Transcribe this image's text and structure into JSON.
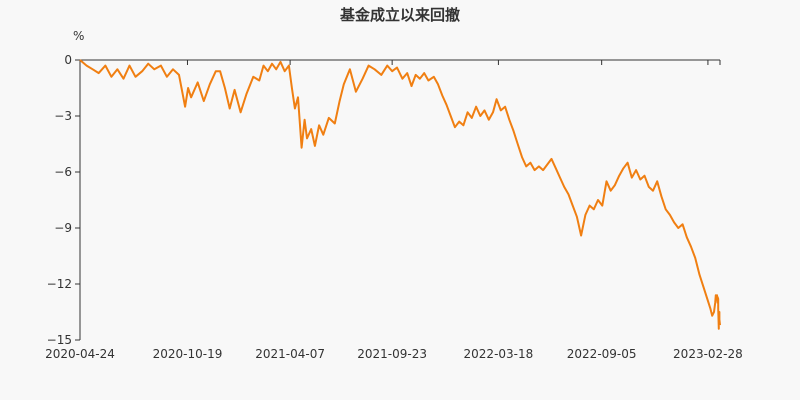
{
  "chart_data": {
    "type": "line",
    "title": "基金成立以来回撤",
    "unit_label": "%",
    "ylim": [
      -15,
      0
    ],
    "y_ticks": [
      0,
      -3,
      -6,
      -9,
      -12,
      -15
    ],
    "y_tick_labels": [
      "0",
      "−3",
      "−6",
      "−9",
      "−12",
      "−15"
    ],
    "x_ticks": [
      "2020-04-24",
      "2020-10-19",
      "2021-04-07",
      "2021-09-23",
      "2022-03-18",
      "2022-09-05",
      "2023-02-28"
    ],
    "x_range": [
      "2020-04-24",
      "2023-03-20"
    ],
    "grid": false,
    "line_color": "#f07f12",
    "series": [
      {
        "name": "",
        "points": [
          [
            "2020-04-24",
            0.0
          ],
          [
            "2020-05-05",
            -0.3
          ],
          [
            "2020-05-15",
            -0.5
          ],
          [
            "2020-05-25",
            -0.7
          ],
          [
            "2020-06-05",
            -0.3
          ],
          [
            "2020-06-15",
            -0.9
          ],
          [
            "2020-06-25",
            -0.5
          ],
          [
            "2020-07-05",
            -1.0
          ],
          [
            "2020-07-15",
            -0.3
          ],
          [
            "2020-07-25",
            -0.9
          ],
          [
            "2020-08-05",
            -0.6
          ],
          [
            "2020-08-15",
            -0.2
          ],
          [
            "2020-08-25",
            -0.5
          ],
          [
            "2020-09-05",
            -0.3
          ],
          [
            "2020-09-15",
            -0.9
          ],
          [
            "2020-09-25",
            -0.5
          ],
          [
            "2020-10-05",
            -0.8
          ],
          [
            "2020-10-15",
            -2.5
          ],
          [
            "2020-10-20",
            -1.5
          ],
          [
            "2020-10-25",
            -2.0
          ],
          [
            "2020-11-05",
            -1.2
          ],
          [
            "2020-11-15",
            -2.2
          ],
          [
            "2020-11-25",
            -1.3
          ],
          [
            "2020-12-05",
            -0.6
          ],
          [
            "2020-12-12",
            -0.6
          ],
          [
            "2020-12-20",
            -1.5
          ],
          [
            "2020-12-28",
            -2.6
          ],
          [
            "2021-01-05",
            -1.6
          ],
          [
            "2021-01-15",
            -2.8
          ],
          [
            "2021-01-25",
            -1.8
          ],
          [
            "2021-02-05",
            -0.9
          ],
          [
            "2021-02-15",
            -1.1
          ],
          [
            "2021-02-22",
            -0.3
          ],
          [
            "2021-03-01",
            -0.6
          ],
          [
            "2021-03-08",
            -0.2
          ],
          [
            "2021-03-15",
            -0.5
          ],
          [
            "2021-03-22",
            -0.1
          ],
          [
            "2021-03-29",
            -0.6
          ],
          [
            "2021-04-05",
            -0.3
          ],
          [
            "2021-04-10",
            -1.5
          ],
          [
            "2021-04-15",
            -2.6
          ],
          [
            "2021-04-20",
            -2.0
          ],
          [
            "2021-04-26",
            -4.7
          ],
          [
            "2021-05-01",
            -3.2
          ],
          [
            "2021-05-05",
            -4.2
          ],
          [
            "2021-05-12",
            -3.7
          ],
          [
            "2021-05-18",
            -4.6
          ],
          [
            "2021-05-25",
            -3.5
          ],
          [
            "2021-06-01",
            -4.0
          ],
          [
            "2021-06-10",
            -3.1
          ],
          [
            "2021-06-20",
            -3.4
          ],
          [
            "2021-06-28",
            -2.2
          ],
          [
            "2021-07-05",
            -1.3
          ],
          [
            "2021-07-15",
            -0.5
          ],
          [
            "2021-07-25",
            -1.7
          ],
          [
            "2021-08-05",
            -1.0
          ],
          [
            "2021-08-15",
            -0.3
          ],
          [
            "2021-08-25",
            -0.5
          ],
          [
            "2021-09-05",
            -0.8
          ],
          [
            "2021-09-15",
            -0.3
          ],
          [
            "2021-09-23",
            -0.6
          ],
          [
            "2021-10-01",
            -0.4
          ],
          [
            "2021-10-10",
            -1.0
          ],
          [
            "2021-10-18",
            -0.7
          ],
          [
            "2021-10-25",
            -1.4
          ],
          [
            "2021-11-01",
            -0.8
          ],
          [
            "2021-11-08",
            -1.0
          ],
          [
            "2021-11-15",
            -0.7
          ],
          [
            "2021-11-22",
            -1.1
          ],
          [
            "2021-12-01",
            -0.9
          ],
          [
            "2021-12-08",
            -1.3
          ],
          [
            "2021-12-15",
            -1.9
          ],
          [
            "2021-12-22",
            -2.4
          ],
          [
            "2021-12-29",
            -3.0
          ],
          [
            "2022-01-05",
            -3.6
          ],
          [
            "2022-01-12",
            -3.3
          ],
          [
            "2022-01-19",
            -3.5
          ],
          [
            "2022-01-26",
            -2.8
          ],
          [
            "2022-02-02",
            -3.1
          ],
          [
            "2022-02-09",
            -2.5
          ],
          [
            "2022-02-16",
            -3.0
          ],
          [
            "2022-02-23",
            -2.7
          ],
          [
            "2022-03-02",
            -3.2
          ],
          [
            "2022-03-09",
            -2.8
          ],
          [
            "2022-03-15",
            -2.1
          ],
          [
            "2022-03-22",
            -2.7
          ],
          [
            "2022-03-29",
            -2.5
          ],
          [
            "2022-04-05",
            -3.2
          ],
          [
            "2022-04-12",
            -3.8
          ],
          [
            "2022-04-19",
            -4.5
          ],
          [
            "2022-04-26",
            -5.2
          ],
          [
            "2022-05-03",
            -5.7
          ],
          [
            "2022-05-10",
            -5.5
          ],
          [
            "2022-05-17",
            -5.9
          ],
          [
            "2022-05-24",
            -5.7
          ],
          [
            "2022-05-31",
            -5.9
          ],
          [
            "2022-06-07",
            -5.6
          ],
          [
            "2022-06-14",
            -5.3
          ],
          [
            "2022-06-21",
            -5.8
          ],
          [
            "2022-06-28",
            -6.3
          ],
          [
            "2022-07-05",
            -6.8
          ],
          [
            "2022-07-12",
            -7.2
          ],
          [
            "2022-07-19",
            -7.8
          ],
          [
            "2022-07-26",
            -8.4
          ],
          [
            "2022-08-02",
            -9.4
          ],
          [
            "2022-08-09",
            -8.3
          ],
          [
            "2022-08-16",
            -7.8
          ],
          [
            "2022-08-23",
            -8.0
          ],
          [
            "2022-08-30",
            -7.5
          ],
          [
            "2022-09-06",
            -7.8
          ],
          [
            "2022-09-13",
            -6.5
          ],
          [
            "2022-09-20",
            -7.0
          ],
          [
            "2022-09-27",
            -6.7
          ],
          [
            "2022-10-04",
            -6.2
          ],
          [
            "2022-10-11",
            -5.8
          ],
          [
            "2022-10-18",
            -5.5
          ],
          [
            "2022-10-25",
            -6.3
          ],
          [
            "2022-11-01",
            -5.9
          ],
          [
            "2022-11-08",
            -6.4
          ],
          [
            "2022-11-15",
            -6.2
          ],
          [
            "2022-11-22",
            -6.8
          ],
          [
            "2022-11-29",
            -7.0
          ],
          [
            "2022-12-06",
            -6.5
          ],
          [
            "2022-12-13",
            -7.3
          ],
          [
            "2022-12-20",
            -8.0
          ],
          [
            "2022-12-27",
            -8.3
          ],
          [
            "2023-01-03",
            -8.7
          ],
          [
            "2023-01-10",
            -9.0
          ],
          [
            "2023-01-17",
            -8.8
          ],
          [
            "2023-01-24",
            -9.5
          ],
          [
            "2023-01-31",
            -10.0
          ],
          [
            "2023-02-07",
            -10.6
          ],
          [
            "2023-02-14",
            -11.5
          ],
          [
            "2023-02-21",
            -12.2
          ],
          [
            "2023-02-26",
            -12.7
          ],
          [
            "2023-03-01",
            -13.0
          ],
          [
            "2023-03-04",
            -13.3
          ],
          [
            "2023-03-07",
            -13.7
          ],
          [
            "2023-03-10",
            -13.5
          ],
          [
            "2023-03-12",
            -13.0
          ],
          [
            "2023-03-13",
            -12.6
          ],
          [
            "2023-03-14",
            -12.8
          ],
          [
            "2023-03-15",
            -12.6
          ],
          [
            "2023-03-16",
            -13.0
          ],
          [
            "2023-03-16",
            -12.7
          ],
          [
            "2023-03-17",
            -12.8
          ],
          [
            "2023-03-17",
            -13.3
          ],
          [
            "2023-03-18",
            -14.4
          ],
          [
            "2023-03-18",
            -14.0
          ],
          [
            "2023-03-19",
            -13.5
          ],
          [
            "2023-03-19",
            -13.9
          ],
          [
            "2023-03-20",
            -14.2
          ]
        ]
      }
    ]
  }
}
